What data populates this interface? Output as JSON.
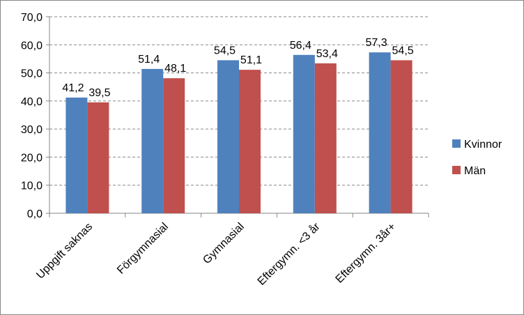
{
  "chart_data": {
    "type": "bar",
    "categories": [
      "Uppgift saknas",
      "Förgymnasial",
      "Gymnasial",
      "Eftergymn. <3 år",
      "Eftergymn. 3år+"
    ],
    "series": [
      {
        "name": "Kvinnor",
        "values": [
          41.2,
          51.4,
          54.5,
          56.4,
          57.3
        ],
        "labels": [
          "41,2",
          "51,4",
          "54,5",
          "56,4",
          "57,3"
        ],
        "color": "#4F81BD"
      },
      {
        "name": "Män",
        "values": [
          39.5,
          48.1,
          51.1,
          53.4,
          54.5
        ],
        "labels": [
          "39,5",
          "48,1",
          "51,1",
          "53,4",
          "54,5"
        ],
        "color": "#C0504D"
      }
    ],
    "ylim": [
      0,
      70
    ],
    "yticks": [
      0,
      10,
      20,
      30,
      40,
      50,
      60,
      70
    ],
    "ytick_labels": [
      "0,0",
      "10,0",
      "20,0",
      "30,0",
      "40,0",
      "50,0",
      "60,0",
      "70,0"
    ],
    "grid": true,
    "legend_position": "right",
    "title": "",
    "xlabel": "",
    "ylabel": ""
  }
}
